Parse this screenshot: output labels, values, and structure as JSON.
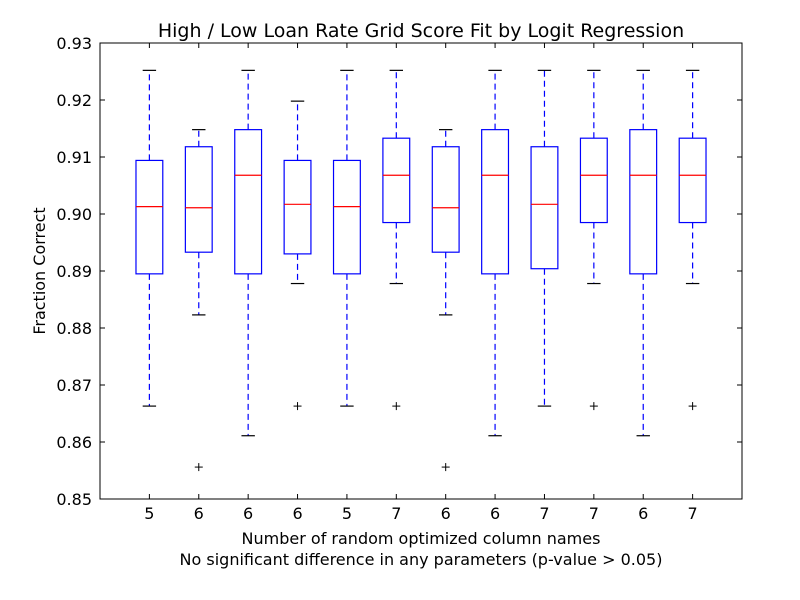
{
  "chart_data": {
    "type": "box",
    "title": "High / Low Loan Rate Grid Score Fit by Logit Regression",
    "xlabel": "Number of random optimized column names",
    "xlabel2": "No significant difference in any parameters (p-value > 0.05)",
    "ylabel": "Fraction Correct",
    "ylim": [
      0.85,
      0.93
    ],
    "yticks": [
      "0.85",
      "0.86",
      "0.87",
      "0.88",
      "0.89",
      "0.90",
      "0.91",
      "0.92",
      "0.93"
    ],
    "categories": [
      "5",
      "6",
      "6",
      "6",
      "5",
      "7",
      "6",
      "6",
      "7",
      "7",
      "6",
      "7"
    ],
    "boxes": [
      {
        "whislo": 0.8663,
        "q1": 0.8895,
        "med": 0.9013,
        "q3": 0.9094,
        "whishi": 0.9252,
        "fliers": []
      },
      {
        "whislo": 0.8823,
        "q1": 0.8933,
        "med": 0.9011,
        "q3": 0.9118,
        "whishi": 0.9148,
        "fliers": [
          0.8556
        ]
      },
      {
        "whislo": 0.8611,
        "q1": 0.8895,
        "med": 0.9068,
        "q3": 0.9148,
        "whishi": 0.9252,
        "fliers": []
      },
      {
        "whislo": 0.8878,
        "q1": 0.893,
        "med": 0.9017,
        "q3": 0.9094,
        "whishi": 0.9198,
        "fliers": [
          0.8663
        ]
      },
      {
        "whislo": 0.8663,
        "q1": 0.8895,
        "med": 0.9013,
        "q3": 0.9094,
        "whishi": 0.9252,
        "fliers": []
      },
      {
        "whislo": 0.8878,
        "q1": 0.8985,
        "med": 0.9068,
        "q3": 0.9133,
        "whishi": 0.9252,
        "fliers": [
          0.8663
        ]
      },
      {
        "whislo": 0.8823,
        "q1": 0.8933,
        "med": 0.9011,
        "q3": 0.9118,
        "whishi": 0.9148,
        "fliers": [
          0.8556
        ]
      },
      {
        "whislo": 0.8611,
        "q1": 0.8895,
        "med": 0.9068,
        "q3": 0.9148,
        "whishi": 0.9252,
        "fliers": []
      },
      {
        "whislo": 0.8663,
        "q1": 0.8904,
        "med": 0.9017,
        "q3": 0.9118,
        "whishi": 0.9252,
        "fliers": []
      },
      {
        "whislo": 0.8878,
        "q1": 0.8985,
        "med": 0.9068,
        "q3": 0.9133,
        "whishi": 0.9252,
        "fliers": [
          0.8663
        ]
      },
      {
        "whislo": 0.8611,
        "q1": 0.8895,
        "med": 0.9068,
        "q3": 0.9148,
        "whishi": 0.9252,
        "fliers": []
      },
      {
        "whislo": 0.8878,
        "q1": 0.8985,
        "med": 0.9068,
        "q3": 0.9133,
        "whishi": 0.9252,
        "fliers": [
          0.8663
        ]
      }
    ],
    "colors": {
      "box": "#0000ff",
      "median": "#ff0000",
      "caps": "#000000",
      "fliers": "#000000"
    },
    "grid": false,
    "legend": "none"
  }
}
